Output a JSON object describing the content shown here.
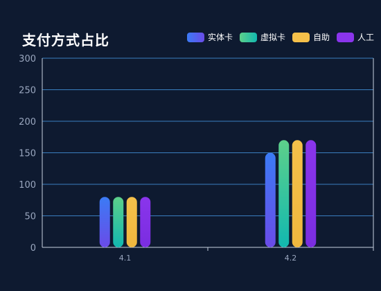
{
  "chart_data": {
    "type": "bar",
    "title": "支付方式占比",
    "xlabel": "",
    "ylabel": "",
    "categories": [
      "4.1",
      "4.2"
    ],
    "series": [
      {
        "name": "实体卡",
        "values": [
          80,
          150
        ],
        "color_top": "#3b7bf5",
        "color_bottom": "#6a4be8"
      },
      {
        "name": "虚拟卡",
        "values": [
          80,
          170
        ],
        "color_top": "#5dd08a",
        "color_bottom": "#12b8b0"
      },
      {
        "name": "自助",
        "values": [
          80,
          170
        ],
        "color_top": "#f5c04a",
        "color_bottom": "#efb73e"
      },
      {
        "name": "人工",
        "values": [
          80,
          170
        ],
        "color_top": "#8a35ec",
        "color_bottom": "#7a2de0"
      }
    ],
    "ylim": [
      0,
      300
    ],
    "yticks": [
      0,
      50,
      100,
      150,
      200,
      250,
      300
    ],
    "grid": true,
    "legend_position": "top-right",
    "background_color": "#0e1a30",
    "grid_color": "#3a7fc0"
  }
}
